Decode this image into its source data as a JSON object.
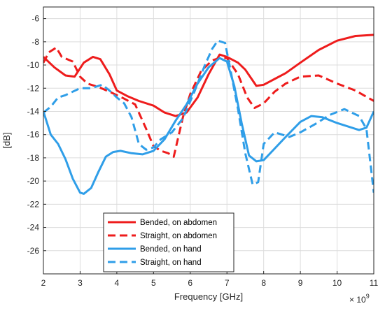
{
  "chart_data": {
    "type": "line",
    "xlabel": "Frequency [GHz]",
    "ylabel": "[dB]",
    "x_exponent_label": "× 10",
    "x_exponent_power": "9",
    "xlim": [
      2,
      11
    ],
    "ylim": [
      -28,
      -5
    ],
    "xticks": [
      "2",
      "3",
      "4",
      "5",
      "6",
      "7",
      "8",
      "9",
      "10",
      "11"
    ],
    "yticks": [
      "-26",
      "-24",
      "-22",
      "-20",
      "-18",
      "-16",
      "-14",
      "-12",
      "-10",
      "-8",
      "-6"
    ],
    "grid": true,
    "legend_position": "bottom-center",
    "colors": {
      "red": "#ee1c1c",
      "blue": "#2f9ee8"
    },
    "series": [
      {
        "name": "Bended, on abdomen",
        "color": "#ee1c1c",
        "dash": "solid",
        "x": [
          2.0,
          2.3,
          2.6,
          2.85,
          3.1,
          3.35,
          3.55,
          3.8,
          4.0,
          4.3,
          4.6,
          5.0,
          5.3,
          5.6,
          5.9,
          6.2,
          6.5,
          6.8,
          7.0,
          7.3,
          7.5,
          7.8,
          8.0,
          8.3,
          8.6,
          9.0,
          9.5,
          10.0,
          10.5,
          11.0
        ],
        "y": [
          -9.3,
          -10.2,
          -10.9,
          -11.0,
          -9.8,
          -9.3,
          -9.5,
          -10.8,
          -12.2,
          -12.7,
          -13.1,
          -13.5,
          -14.1,
          -14.4,
          -14.1,
          -12.8,
          -10.8,
          -9.1,
          -9.3,
          -9.8,
          -10.4,
          -11.8,
          -11.7,
          -11.2,
          -10.7,
          -9.8,
          -8.7,
          -7.9,
          -7.5,
          -7.4
        ]
      },
      {
        "name": "Straight, on abdomen",
        "color": "#ee1c1c",
        "dash": "dashed",
        "x": [
          2.0,
          2.15,
          2.35,
          2.5,
          2.8,
          3.0,
          3.2,
          3.5,
          3.8,
          4.0,
          4.2,
          4.5,
          4.8,
          5.0,
          5.2,
          5.4,
          5.55,
          5.8,
          6.0,
          6.3,
          6.6,
          6.8,
          7.0,
          7.3,
          7.55,
          7.75,
          8.0,
          8.3,
          8.6,
          9.0,
          9.5,
          10.0,
          10.5,
          11.0
        ],
        "y": [
          -9.8,
          -8.9,
          -8.5,
          -9.3,
          -9.7,
          -11.0,
          -11.6,
          -11.9,
          -12.3,
          -12.6,
          -12.9,
          -13.4,
          -15.5,
          -17.0,
          -17.4,
          -17.6,
          -17.9,
          -14.5,
          -12.5,
          -10.5,
          -9.6,
          -9.4,
          -9.4,
          -10.8,
          -12.8,
          -13.7,
          -13.3,
          -12.3,
          -11.6,
          -11.0,
          -10.9,
          -11.6,
          -12.2,
          -13.1
        ]
      },
      {
        "name": "Bended, on hand",
        "color": "#2f9ee8",
        "dash": "solid",
        "x": [
          2.0,
          2.2,
          2.4,
          2.6,
          2.8,
          3.0,
          3.1,
          3.3,
          3.5,
          3.7,
          3.9,
          4.1,
          4.4,
          4.7,
          5.0,
          5.3,
          5.6,
          5.9,
          6.2,
          6.5,
          6.8,
          7.0,
          7.2,
          7.4,
          7.6,
          7.8,
          8.0,
          8.3,
          8.6,
          9.0,
          9.3,
          9.6,
          10.0,
          10.3,
          10.6,
          10.8,
          11.0
        ],
        "y": [
          -14.0,
          -16.0,
          -16.8,
          -18.1,
          -19.8,
          -21.0,
          -21.1,
          -20.6,
          -19.2,
          -17.9,
          -17.5,
          -17.4,
          -17.6,
          -17.7,
          -17.4,
          -16.4,
          -14.8,
          -13.4,
          -11.6,
          -10.2,
          -9.4,
          -9.7,
          -11.8,
          -15.0,
          -17.8,
          -18.3,
          -18.2,
          -17.2,
          -16.2,
          -14.9,
          -14.4,
          -14.5,
          -15.0,
          -15.3,
          -15.6,
          -15.4,
          -14.0
        ]
      },
      {
        "name": "Straight, on hand",
        "color": "#2f9ee8",
        "dash": "dashed",
        "x": [
          2.0,
          2.2,
          2.4,
          2.6,
          2.8,
          3.0,
          3.3,
          3.6,
          3.8,
          4.0,
          4.2,
          4.4,
          4.6,
          4.8,
          5.0,
          5.2,
          5.5,
          5.8,
          6.1,
          6.4,
          6.6,
          6.75,
          6.95,
          7.1,
          7.3,
          7.5,
          7.7,
          7.85,
          8.0,
          8.3,
          8.7,
          9.0,
          9.4,
          9.8,
          10.2,
          10.6,
          10.8,
          11.0
        ],
        "y": [
          -14.1,
          -13.6,
          -12.8,
          -12.6,
          -12.3,
          -12.0,
          -12.0,
          -11.7,
          -12.2,
          -12.8,
          -13.3,
          -14.5,
          -16.8,
          -17.3,
          -17.1,
          -16.4,
          -15.8,
          -14.6,
          -12.4,
          -10.0,
          -8.6,
          -7.9,
          -8.1,
          -10.5,
          -13.8,
          -17.6,
          -20.3,
          -20.1,
          -16.8,
          -15.8,
          -16.2,
          -15.8,
          -15.1,
          -14.3,
          -13.8,
          -14.4,
          -15.5,
          -21.0
        ]
      }
    ]
  }
}
